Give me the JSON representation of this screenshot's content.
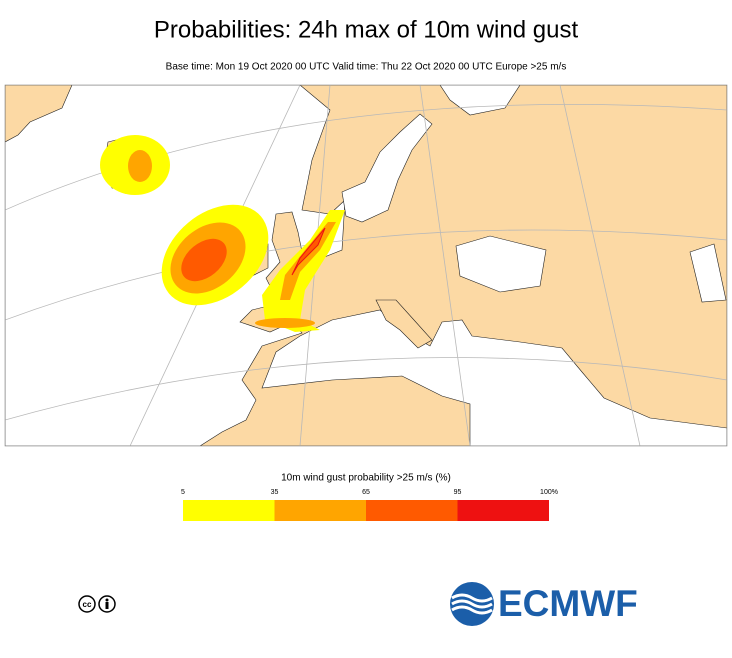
{
  "header": {
    "title": "Probabilities: 24h max of 10m wind gust",
    "subtitle": "Base time: Mon 19 Oct 2020 00 UTC Valid time: Thu 22 Oct 2020 00 UTC Europe >25 m/s"
  },
  "legend": {
    "title": "10m wind gust probability >25 m/s (%)",
    "ticks": [
      "5",
      "35",
      "65",
      "95",
      "100%"
    ],
    "colors": [
      "#ffff00",
      "#ffa500",
      "#ff5a00",
      "#ee1111"
    ]
  },
  "logo": {
    "text": "ECMWF"
  }
}
